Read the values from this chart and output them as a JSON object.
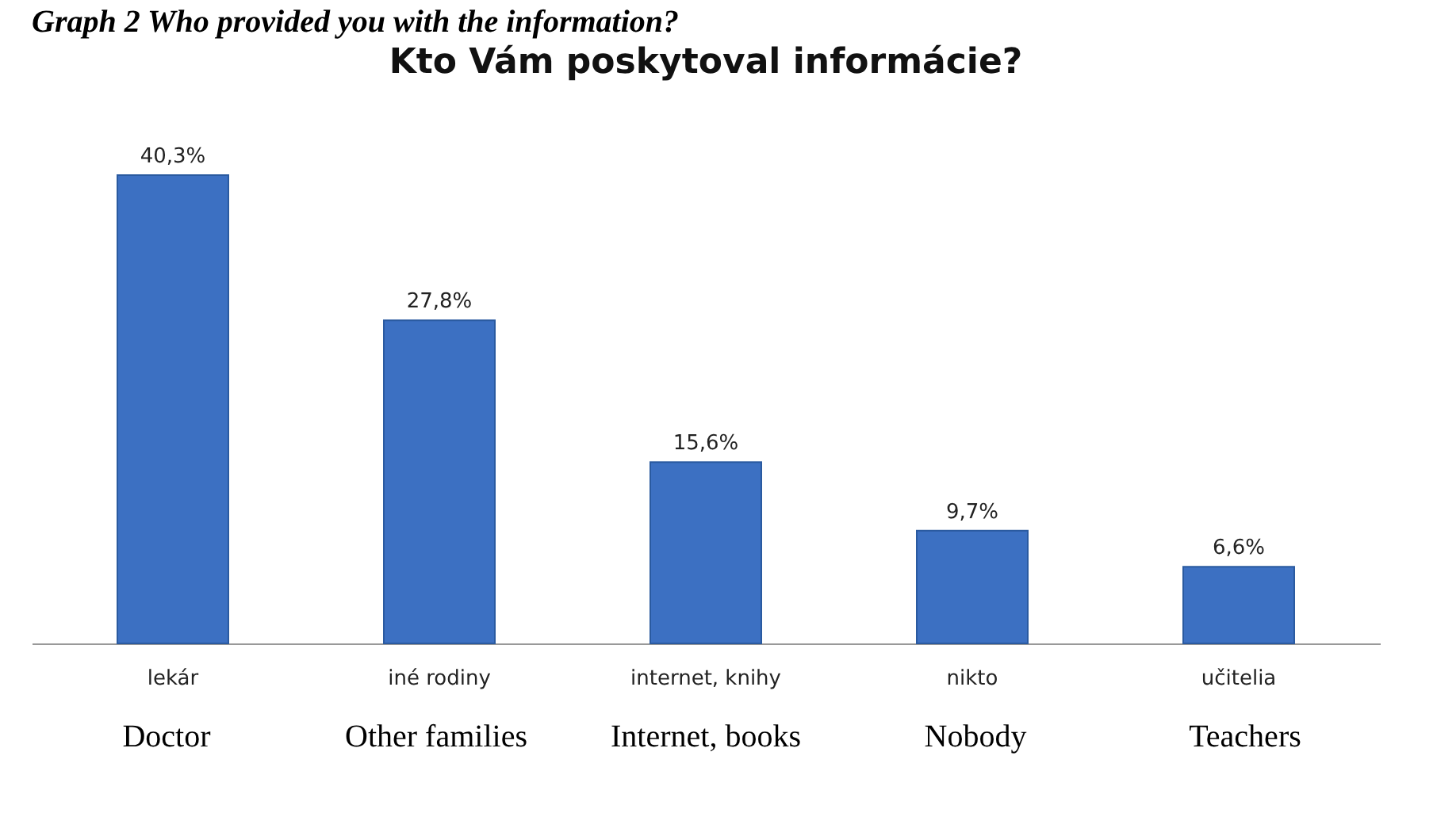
{
  "chart_data": {
    "type": "bar",
    "title": "Kto Vám poskytoval informácie?",
    "categories": [
      "lekár",
      "iné rodiny",
      "internet, knihy",
      "nikto",
      "učitelia"
    ],
    "values": [
      40.3,
      27.8,
      15.6,
      9.7,
      6.6
    ],
    "value_labels": [
      "40,3%",
      "27,8%",
      "15,6%",
      "9,7%",
      "6,6%"
    ],
    "color": "#3c70c2",
    "grid": false,
    "annotations": [
      "Graph 2 Who provided you with the information?",
      "Doctor",
      "Other families",
      "Internet, books",
      "Nobody",
      "Teachers"
    ]
  }
}
